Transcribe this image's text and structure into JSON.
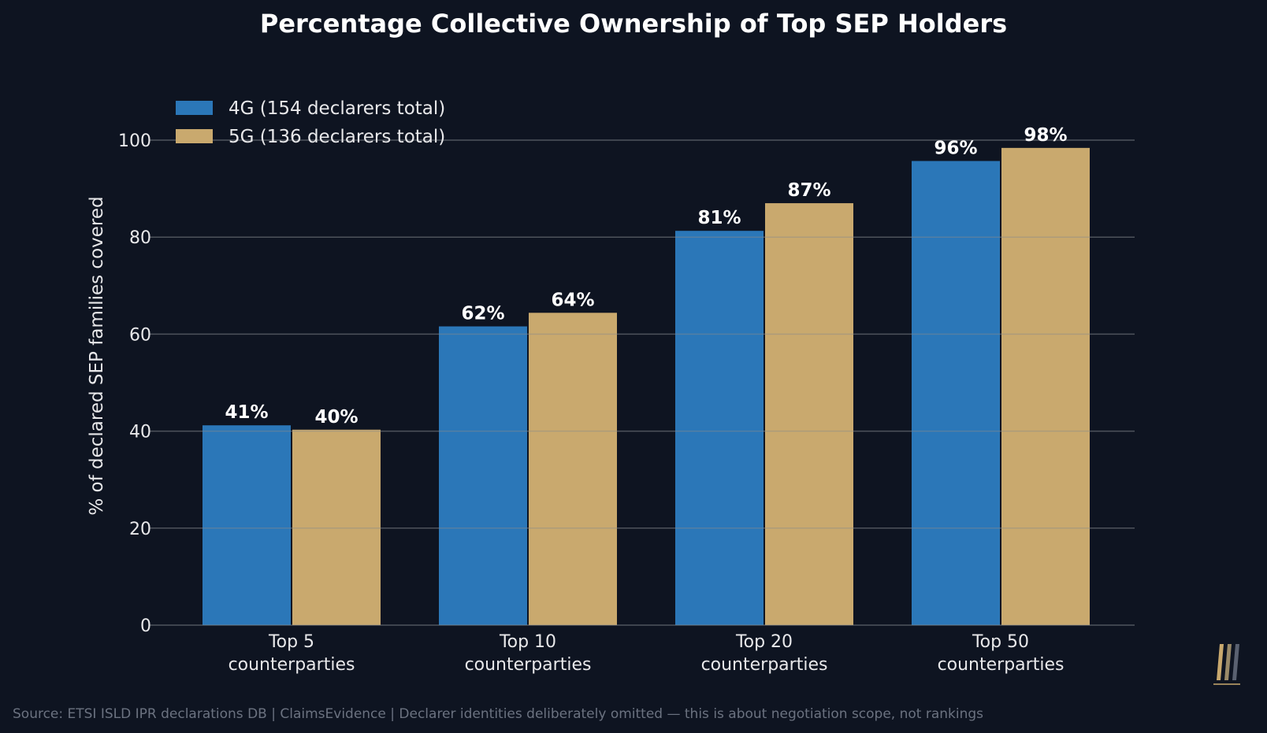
{
  "chart_data": {
    "type": "bar",
    "title": "Percentage Collective Ownership of Top SEP Holders",
    "ylabel": "% of declared SEP families covered",
    "xlabel": "",
    "ylim": [
      0,
      100
    ],
    "yticks": [
      0,
      20,
      40,
      60,
      80,
      100
    ],
    "grid": true,
    "legend_position": "top-left",
    "categories": [
      [
        "Top 5",
        "counterparties"
      ],
      [
        "Top 10",
        "counterparties"
      ],
      [
        "Top 20",
        "counterparties"
      ],
      [
        "Top 50",
        "counterparties"
      ]
    ],
    "series": [
      {
        "name": "4G  (154 declarers total)",
        "color": "#2b77b8",
        "values": [
          41,
          62,
          81,
          96
        ],
        "labels": [
          "41%",
          "62%",
          "81%",
          "96%"
        ]
      },
      {
        "name": "5G  (136 declarers total)",
        "color": "#c9a96e",
        "values": [
          40,
          64,
          87,
          98
        ],
        "labels": [
          "40%",
          "64%",
          "87%",
          "98%"
        ]
      }
    ],
    "exact_values": {
      "4G": [
        41.2,
        61.6,
        81.3,
        95.7
      ],
      "5G": [
        40.3,
        64.4,
        87.0,
        98.4
      ]
    }
  },
  "footer": {
    "source": "Source: ETSI ISLD IPR declarations DB | ClaimsEvidence  |  Declarer identities deliberately omitted — this is about negotiation scope, not rankings"
  },
  "logo": {
    "icon": "triple-bar-logo-icon",
    "colors": [
      "#c9a96e",
      "#9a8a68",
      "#5a6170"
    ]
  },
  "colors": {
    "background": "#0e1421",
    "text": "#e8e8ea",
    "grid": "#1c2636"
  }
}
